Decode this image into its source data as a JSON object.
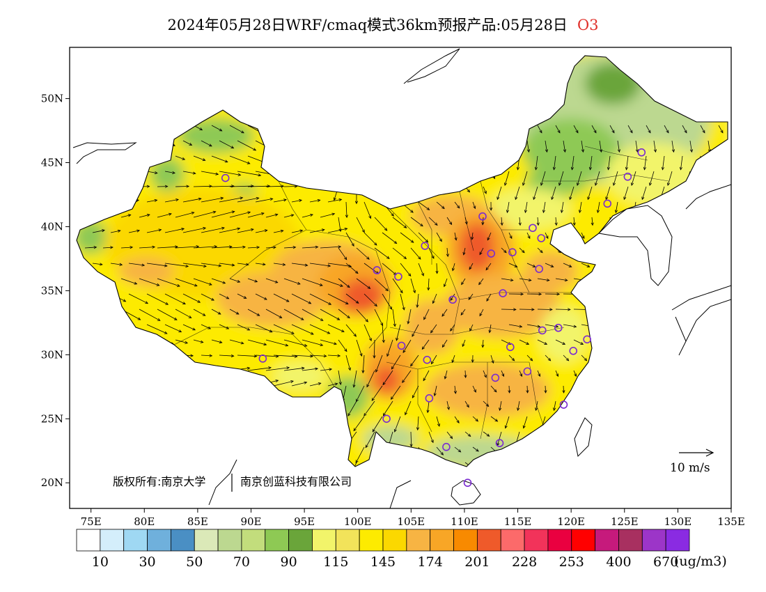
{
  "title": {
    "main": "2024年05月28日WRF/cmaq模式36km预报产品:05月28日",
    "species": "O3"
  },
  "axes": {
    "lon_range": [
      73,
      135
    ],
    "lat_range": [
      18,
      54
    ],
    "lon_ticks": [
      "75E",
      "80E",
      "85E",
      "90E",
      "95E",
      "100E",
      "105E",
      "110E",
      "115E",
      "120E",
      "125E",
      "130E",
      "135E"
    ],
    "lat_ticks": [
      "20N",
      "25N",
      "30N",
      "35N",
      "40N",
      "45N",
      "50N"
    ]
  },
  "copyright": {
    "left": "版权所有:南京大学",
    "right": "南京创蓝科技有限公司"
  },
  "wind_legend": {
    "label": "10 m/s"
  },
  "colorbar": {
    "unit": "(ug/m3)",
    "labels": [
      "10",
      "30",
      "50",
      "70",
      "90",
      "115",
      "145",
      "174",
      "201",
      "228",
      "253",
      "400",
      "670"
    ],
    "colors": [
      "#ffffff",
      "#d4eefb",
      "#9fd8f3",
      "#6fb0dc",
      "#4a8fc4",
      "#dbe9b8",
      "#bcd890",
      "#c2dd7c",
      "#8ec954",
      "#6aa53a",
      "#f2f46a",
      "#f2e35a",
      "#fdeb00",
      "#fbd800",
      "#f7b443",
      "#f8a626",
      "#f88a00",
      "#ef5a2a",
      "#fc6a6a",
      "#f2335a",
      "#ea0040",
      "#ff0000",
      "#c61a7c",
      "#a83060",
      "#9c35c8",
      "#8a2be2"
    ]
  },
  "map": {
    "colors": {
      "green_dark": "#6aa53a",
      "green": "#8ec954",
      "green_light": "#bcd890",
      "yellow_light": "#f2f46a",
      "yellow": "#fdeb00",
      "gold": "#fbd800",
      "orange_light": "#f7b443",
      "orange": "#f8a626",
      "orange_dark": "#ef5a2a",
      "coast": "#000000",
      "station": "#7a2bd0"
    },
    "stations": [
      {
        "lon": 87.6,
        "lat": 43.8
      },
      {
        "lon": 91.1,
        "lat": 29.7
      },
      {
        "lon": 101.8,
        "lat": 36.6
      },
      {
        "lon": 103.8,
        "lat": 36.1
      },
      {
        "lon": 106.3,
        "lat": 38.5
      },
      {
        "lon": 104.1,
        "lat": 30.7
      },
      {
        "lon": 102.7,
        "lat": 25.0
      },
      {
        "lon": 106.7,
        "lat": 26.6
      },
      {
        "lon": 106.5,
        "lat": 29.6
      },
      {
        "lon": 108.3,
        "lat": 22.8
      },
      {
        "lon": 110.3,
        "lat": 20.0
      },
      {
        "lon": 113.3,
        "lat": 23.1
      },
      {
        "lon": 112.9,
        "lat": 28.2
      },
      {
        "lon": 115.9,
        "lat": 28.7
      },
      {
        "lon": 114.3,
        "lat": 30.6
      },
      {
        "lon": 108.9,
        "lat": 34.3
      },
      {
        "lon": 111.7,
        "lat": 40.8
      },
      {
        "lon": 112.5,
        "lat": 37.9
      },
      {
        "lon": 114.5,
        "lat": 38.0
      },
      {
        "lon": 116.4,
        "lat": 39.9
      },
      {
        "lon": 117.2,
        "lat": 39.1
      },
      {
        "lon": 113.6,
        "lat": 34.8
      },
      {
        "lon": 117.0,
        "lat": 36.7
      },
      {
        "lon": 117.3,
        "lat": 31.9
      },
      {
        "lon": 118.8,
        "lat": 32.1
      },
      {
        "lon": 120.2,
        "lat": 30.3
      },
      {
        "lon": 121.5,
        "lat": 31.2
      },
      {
        "lon": 119.3,
        "lat": 26.1
      },
      {
        "lon": 123.4,
        "lat": 41.8
      },
      {
        "lon": 125.3,
        "lat": 43.9
      },
      {
        "lon": 126.6,
        "lat": 45.8
      }
    ]
  }
}
